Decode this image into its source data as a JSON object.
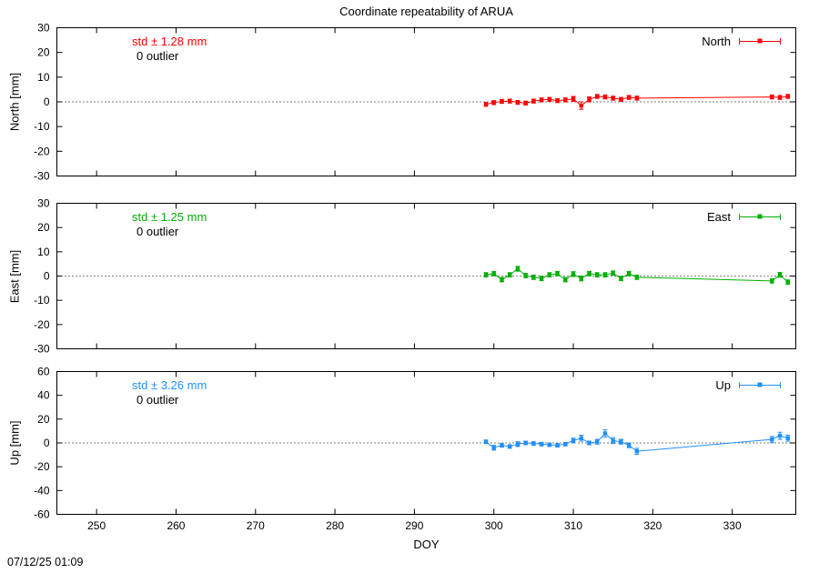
{
  "timestamp": "07/12/25 01:09",
  "chart_data": {
    "type": "scatter",
    "title": "Coordinate repeatability of ARUA",
    "xlabel": "DOY",
    "xlim": [
      245,
      338
    ],
    "xticks": [
      250,
      260,
      270,
      280,
      290,
      300,
      310,
      320,
      330
    ],
    "grid": "zero-line-only",
    "legend_position": "top-right-inside",
    "panels": [
      {
        "name": "north",
        "ylabel": "North [mm]",
        "legend_label": "North",
        "std_text": "std ± 1.28 mm",
        "outlier_text": "0 outlier",
        "color": "#ff0000",
        "ylim": [
          -30,
          30
        ],
        "yticks": [
          -30,
          -20,
          -10,
          0,
          10,
          20,
          30
        ],
        "x": [
          299,
          300,
          301,
          302,
          303,
          304,
          305,
          306,
          307,
          308,
          309,
          310,
          311,
          312,
          313,
          314,
          315,
          316,
          317,
          318,
          335,
          336,
          337
        ],
        "y": [
          -1.0,
          -0.3,
          0.2,
          0.3,
          -0.2,
          -0.5,
          0.3,
          0.8,
          1.0,
          0.5,
          0.8,
          1.2,
          -1.5,
          1.0,
          2.2,
          2.0,
          1.5,
          1.0,
          1.8,
          1.5,
          2.0,
          1.8,
          2.2
        ],
        "yerr": [
          0.8,
          0.8,
          0.8,
          0.8,
          0.8,
          0.8,
          0.8,
          0.8,
          0.8,
          0.8,
          0.8,
          1.0,
          1.5,
          1.0,
          0.8,
          0.8,
          0.8,
          0.8,
          0.8,
          0.8,
          0.8,
          0.8,
          0.8
        ]
      },
      {
        "name": "east",
        "ylabel": "East [mm]",
        "legend_label": "East",
        "std_text": "std ± 1.25 mm",
        "outlier_text": "0 outlier",
        "color": "#00b000",
        "ylim": [
          -30,
          30
        ],
        "yticks": [
          -30,
          -20,
          -10,
          0,
          10,
          20,
          30
        ],
        "x": [
          299,
          300,
          301,
          302,
          303,
          304,
          305,
          306,
          307,
          308,
          309,
          310,
          311,
          312,
          313,
          314,
          315,
          316,
          317,
          318,
          335,
          336,
          337
        ],
        "y": [
          0.5,
          1.0,
          -1.5,
          0.5,
          3.0,
          0.2,
          -0.5,
          -1.0,
          0.5,
          1.0,
          -1.5,
          0.8,
          -1.0,
          1.0,
          0.5,
          0.5,
          1.2,
          -1.0,
          1.0,
          -0.5,
          -2.0,
          0.5,
          -2.5
        ],
        "yerr": [
          0.9,
          0.9,
          0.9,
          0.9,
          1.0,
          0.9,
          0.9,
          0.9,
          0.9,
          0.9,
          0.9,
          1.0,
          1.0,
          0.9,
          0.9,
          0.9,
          0.9,
          0.9,
          0.9,
          0.9,
          0.9,
          1.0,
          0.9
        ]
      },
      {
        "name": "up",
        "ylabel": "Up [mm]",
        "legend_label": "Up",
        "std_text": "std ± 3.26 mm",
        "outlier_text": "0 outlier",
        "color": "#1e90ff",
        "ylim": [
          -60,
          60
        ],
        "yticks": [
          -60,
          -40,
          -20,
          0,
          20,
          40,
          60
        ],
        "x": [
          299,
          300,
          301,
          302,
          303,
          304,
          305,
          306,
          307,
          308,
          309,
          310,
          311,
          312,
          313,
          314,
          315,
          316,
          317,
          318,
          335,
          336,
          337
        ],
        "y": [
          1.0,
          -4.0,
          -2.0,
          -3.0,
          -1.0,
          0.0,
          -0.5,
          -1.0,
          -1.5,
          -2.0,
          -1.0,
          2.0,
          4.0,
          0.0,
          1.0,
          8.0,
          2.0,
          1.0,
          -2.0,
          -7.0,
          3.0,
          6.0,
          4.0
        ],
        "yerr": [
          1.5,
          2.0,
          1.5,
          1.5,
          2.0,
          1.5,
          1.5,
          1.5,
          1.5,
          1.5,
          1.5,
          2.0,
          2.5,
          1.5,
          2.0,
          3.0,
          2.5,
          2.0,
          2.0,
          2.5,
          2.5,
          3.0,
          2.5
        ]
      }
    ]
  }
}
